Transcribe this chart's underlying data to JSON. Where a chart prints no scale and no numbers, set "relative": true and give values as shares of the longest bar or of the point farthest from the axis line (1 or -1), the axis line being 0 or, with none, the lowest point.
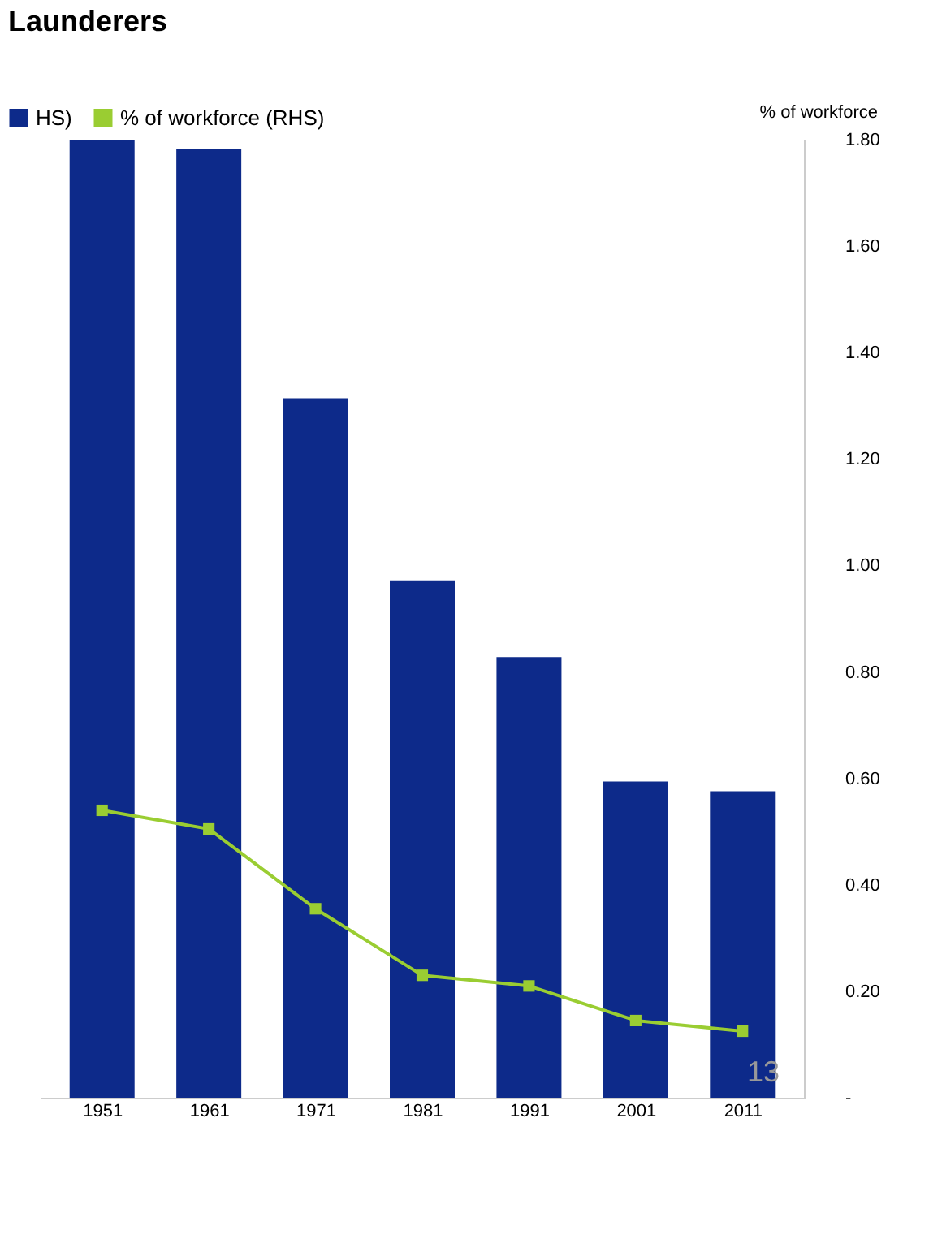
{
  "chart_data": {
    "type": "bar",
    "title": "Launderers",
    "y2label": "% of workforce",
    "categories": [
      "1951",
      "1961",
      "1971",
      "1981",
      "1991",
      "2001",
      "2011"
    ],
    "relative": true,
    "series": [
      {
        "name": "HS)",
        "color": "#0d2a8a",
        "values": [
          1,
          0.99,
          0.73,
          0.54,
          0.46,
          0.33,
          0.32
        ]
      },
      {
        "name": "% of workforce (RHS)",
        "type": "line",
        "axis": "y2",
        "color": "#9acd32",
        "marker": "square",
        "values": [
          0.54,
          0.505,
          0.355,
          0.23,
          0.21,
          0.145,
          0.125
        ]
      }
    ],
    "y2lim": [
      0,
      1.8
    ],
    "y2ticks": [
      {
        "value": 0,
        "label": "-"
      },
      {
        "value": 0.2,
        "label": "0.20"
      },
      {
        "value": 0.4,
        "label": "0.40"
      },
      {
        "value": 0.6,
        "label": "0.60"
      },
      {
        "value": 0.8,
        "label": "0.80"
      },
      {
        "value": 1.0,
        "label": "1.00"
      },
      {
        "value": 1.2,
        "label": "1.20"
      },
      {
        "value": 1.4,
        "label": "1.40"
      },
      {
        "value": 1.6,
        "label": "1.60"
      },
      {
        "value": 1.8,
        "label": "1.80"
      }
    ],
    "legend": "top left",
    "grid": false,
    "annotations": [
      "13"
    ]
  }
}
